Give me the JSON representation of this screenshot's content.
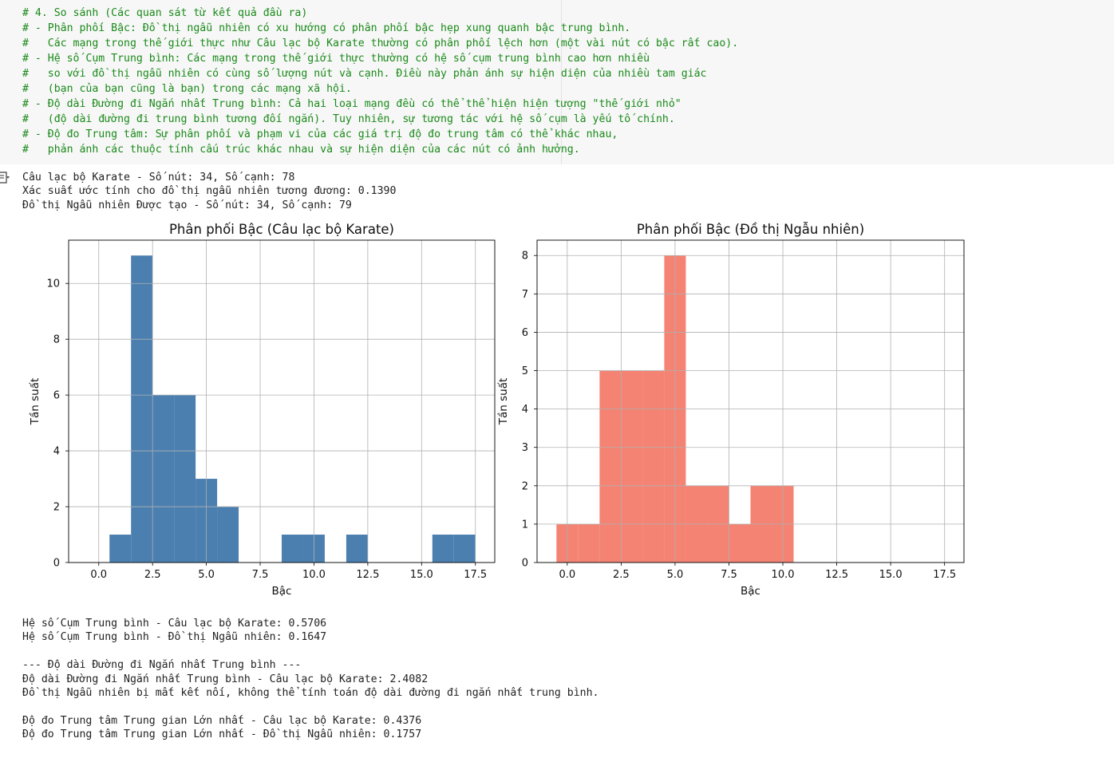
{
  "code_comments": [
    "# 4. So sánh (Các quan sát từ kết quả đầu ra)",
    "# - Phân phối Bậc: Đồ thị ngẫu nhiên có xu hướng có phân phối bậc hẹp xung quanh bậc trung bình.",
    "#   Các mạng trong thế giới thực như Câu lạc bộ Karate thường có phân phối lệch hơn (một vài nút có bậc rất cao).",
    "# - Hệ số Cụm Trung bình: Các mạng trong thế giới thực thường có hệ số cụm trung bình cao hơn nhiều",
    "#   so với đồ thị ngẫu nhiên có cùng số lượng nút và cạnh. Điều này phản ánh sự hiện diện của nhiều tam giác",
    "#   (bạn của bạn cũng là bạn) trong các mạng xã hội.",
    "# - Độ dài Đường đi Ngắn nhất Trung bình: Cả hai loại mạng đều có thể thể hiện hiện tượng \"thế giới nhỏ\"",
    "#   (độ dài đường đi trung bình tương đối ngắn). Tuy nhiên, sự tương tác với hệ số cụm là yếu tố chính.",
    "# - Độ đo Trung tâm: Sự phân phối và phạm vi của các giá trị độ đo trung tâm có thể khác nhau,",
    "#   phản ánh các thuộc tính cấu trúc khác nhau và sự hiện diện của các nút có ảnh hưởng."
  ],
  "output_icon": "output-toggle-icon",
  "output_top": [
    "Câu lạc bộ Karate - Số nút: 34, Số cạnh: 78",
    "Xác suất ước tính cho đồ thị ngẫu nhiên tương đương: 0.1390",
    "Đồ thị Ngẫu nhiên Được tạo - Số nút: 34, Số cạnh: 79"
  ],
  "output_bottom": [
    "Hệ số Cụm Trung bình - Câu lạc bộ Karate: 0.5706",
    "Hệ số Cụm Trung bình - Đồ thị Ngẫu nhiên: 0.1647",
    "",
    "--- Độ dài Đường đi Ngắn nhất Trung bình ---",
    "Độ dài Đường đi Ngắn nhất Trung bình - Câu lạc bộ Karate: 2.4082",
    "Đồ thị Ngẫu nhiên bị mất kết nối, không thể tính toán độ dài đường đi ngắn nhất trung bình.",
    "",
    "Độ đo Trung tâm Trung gian Lớn nhất - Câu lạc bộ Karate: 0.4376",
    "Độ đo Trung tâm Trung gian Lớn nhất - Đồ thị Ngẫu nhiên: 0.1757"
  ],
  "chart_data": [
    {
      "type": "bar",
      "title": "Phân phối Bậc (Câu lạc bộ Karate)",
      "xlabel": "Bậc",
      "ylabel": "Tần suất",
      "color": "#4a7fb0",
      "bin_width": 1,
      "x": [
        1,
        2,
        3,
        4,
        5,
        6,
        9,
        10,
        12,
        16,
        17
      ],
      "values": [
        1,
        11,
        6,
        6,
        3,
        2,
        1,
        1,
        1,
        1,
        1
      ],
      "xlim": [
        -1.4,
        18.4
      ],
      "ylim": [
        0,
        11.55
      ],
      "xticks": [
        0.0,
        2.5,
        5.0,
        7.5,
        10.0,
        12.5,
        15.0,
        17.5
      ],
      "xtick_labels": [
        "0.0",
        "2.5",
        "5.0",
        "7.5",
        "10.0",
        "12.5",
        "15.0",
        "17.5"
      ],
      "yticks": [
        0,
        2,
        4,
        6,
        8,
        10
      ],
      "ytick_labels": [
        "0",
        "2",
        "4",
        "6",
        "8",
        "10"
      ],
      "grid": true
    },
    {
      "type": "bar",
      "title": "Phân phối Bậc (Đồ thị Ngẫu nhiên)",
      "xlabel": "Bậc",
      "ylabel": "Tần suất",
      "color": "#f48373",
      "bin_width": 1,
      "x": [
        0,
        1,
        2,
        3,
        4,
        5,
        6,
        7,
        8,
        9,
        10
      ],
      "values": [
        1,
        1,
        5,
        5,
        5,
        8,
        2,
        2,
        1,
        2,
        2
      ],
      "xlim": [
        -1.4,
        18.4
      ],
      "ylim": [
        0,
        8.4
      ],
      "xticks": [
        0.0,
        2.5,
        5.0,
        7.5,
        10.0,
        12.5,
        15.0,
        17.5
      ],
      "xtick_labels": [
        "0.0",
        "2.5",
        "5.0",
        "7.5",
        "10.0",
        "12.5",
        "15.0",
        "17.5"
      ],
      "yticks": [
        0,
        1,
        2,
        3,
        4,
        5,
        6,
        7,
        8
      ],
      "ytick_labels": [
        "0",
        "1",
        "2",
        "3",
        "4",
        "5",
        "6",
        "7",
        "8"
      ],
      "grid": true
    }
  ]
}
